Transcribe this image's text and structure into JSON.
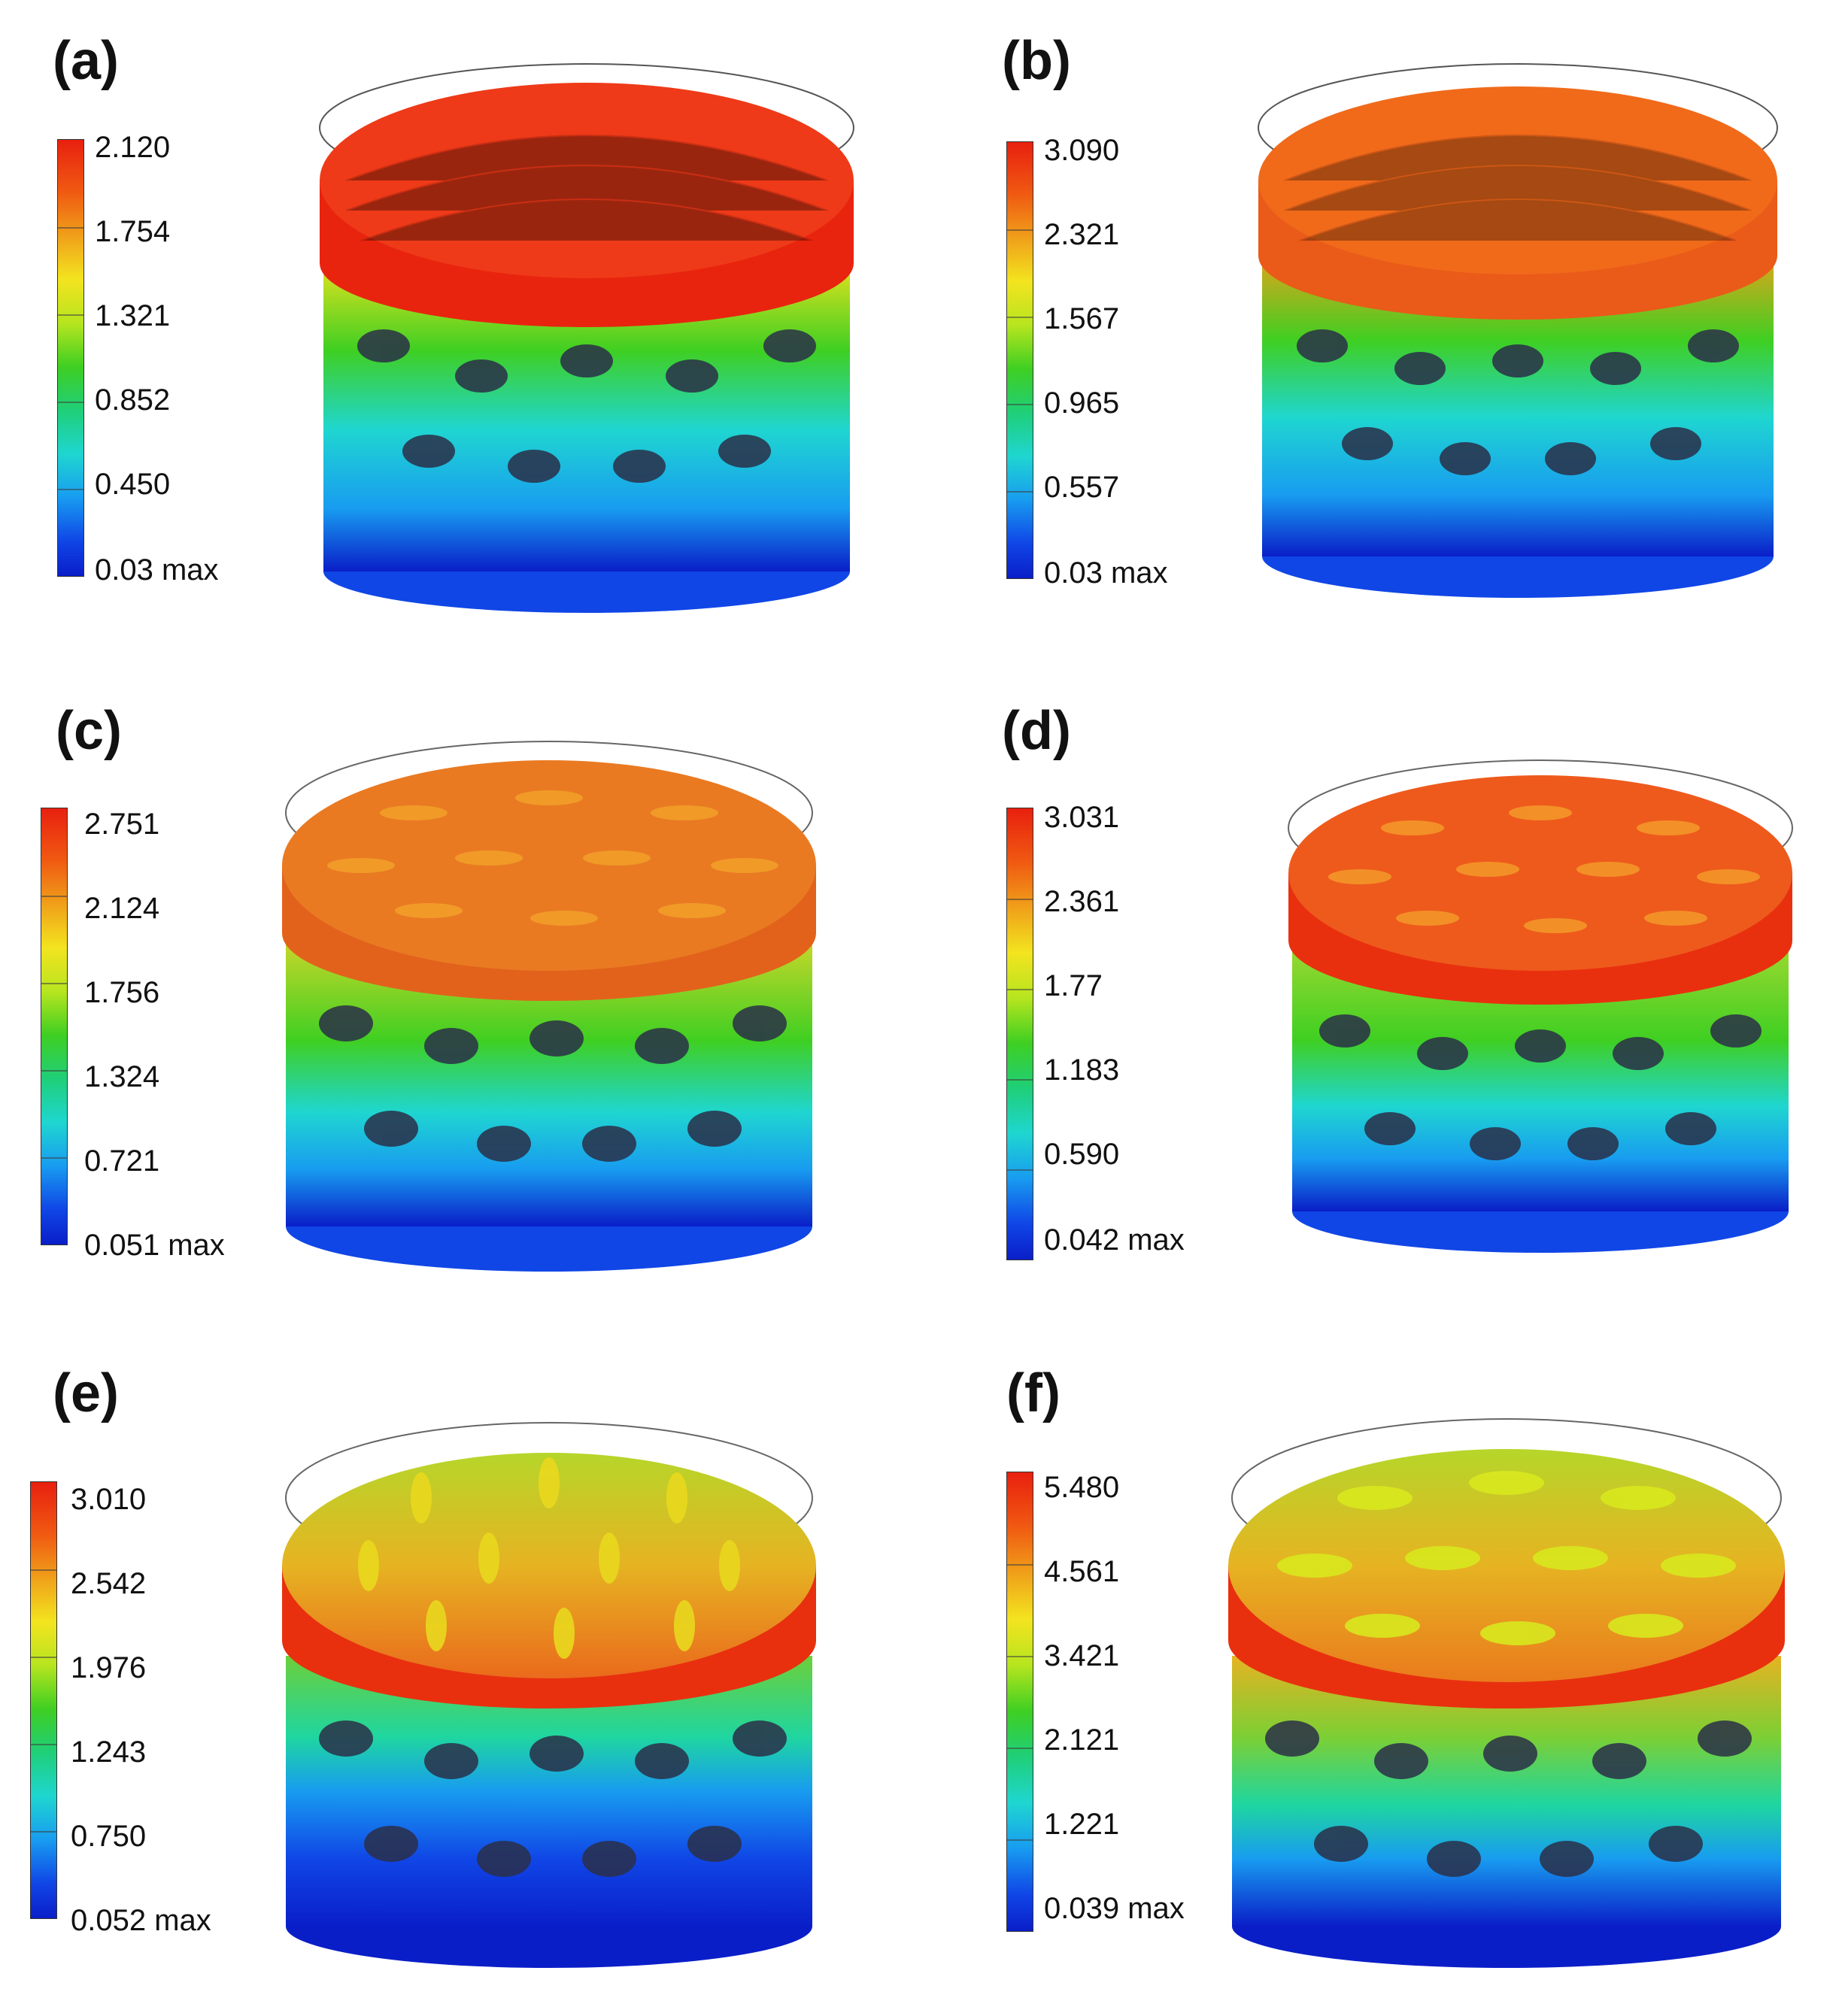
{
  "panels": [
    {
      "label": "(a)",
      "ticks": [
        "2.120",
        "1.754",
        "1.321",
        "0.852",
        "0.450",
        "0.03 max"
      ],
      "top_color": "#e8240f",
      "mid_color": "#f0a01a"
    },
    {
      "label": "(b)",
      "ticks": [
        "3.090",
        "2.321",
        "1.567",
        "0.965",
        "0.557",
        "0.03 max"
      ],
      "top_color": "#f06a1a",
      "mid_color": "#f0a01a"
    },
    {
      "label": "(c)",
      "ticks": [
        "2.751",
        "2.124",
        "1.756",
        "1.324",
        "0.721",
        "0.051 max"
      ],
      "top_color": "#e97a22",
      "mid_color": "#c8d72a"
    },
    {
      "label": "(d)",
      "ticks": [
        "3.031",
        "2.361",
        "1.77",
        "1.183",
        "0.590",
        "0.042 max"
      ],
      "top_color": "#ee5a1c",
      "mid_color": "#9ad830"
    },
    {
      "label": "(e)",
      "ticks": [
        "3.010",
        "2.542",
        "1.976",
        "1.243",
        "0.750",
        "0.052 max"
      ],
      "top_color": "#e6b322",
      "mid_color": "#6ccf3a"
    },
    {
      "label": "(f)",
      "ticks": [
        "5.480",
        "4.561",
        "3.421",
        "2.121",
        "1.221",
        "0.039 max"
      ],
      "top_color": "#e7a724",
      "mid_color": "#7ccf34"
    }
  ]
}
